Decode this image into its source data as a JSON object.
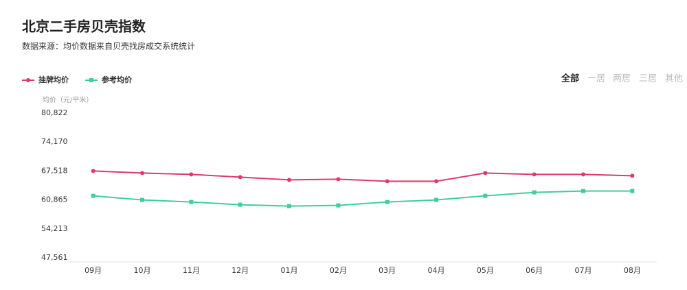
{
  "chart_data": {
    "type": "line",
    "title": "北京二手房贝壳指数",
    "subtitle": "数据来源：均价数据来自贝壳找房成交系统统计",
    "y_label": "均价（元/平米）",
    "tabs": [
      "全部",
      "一居",
      "两居",
      "三居",
      "其他"
    ],
    "categories": [
      "09月",
      "10月",
      "11月",
      "12月",
      "01月",
      "02月",
      "03月",
      "04月",
      "05月",
      "06月",
      "07月",
      "08月"
    ],
    "series": [
      {
        "name": "挂牌均价",
        "color": "#e0386b",
        "values": [
          67518,
          67045,
          66730,
          66100,
          65470,
          65630,
          65150,
          65150,
          67045,
          66730,
          66730,
          66415
        ]
      },
      {
        "name": "参考均价",
        "color": "#3ecf9a",
        "values": [
          61810,
          60865,
          60390,
          59760,
          59450,
          59600,
          60390,
          60865,
          61810,
          62600,
          62910,
          62910
        ]
      }
    ],
    "ylim": [
      47561,
      80822
    ],
    "yticks": [
      {
        "value": 47561,
        "label": "47,561"
      },
      {
        "value": 54213,
        "label": "54,213"
      },
      {
        "value": 60865,
        "label": "60,865"
      },
      {
        "value": 67518,
        "label": "67,518"
      },
      {
        "value": 74170,
        "label": "74,170"
      },
      {
        "value": 80822,
        "label": "80,822"
      }
    ],
    "legend": "top-left"
  }
}
